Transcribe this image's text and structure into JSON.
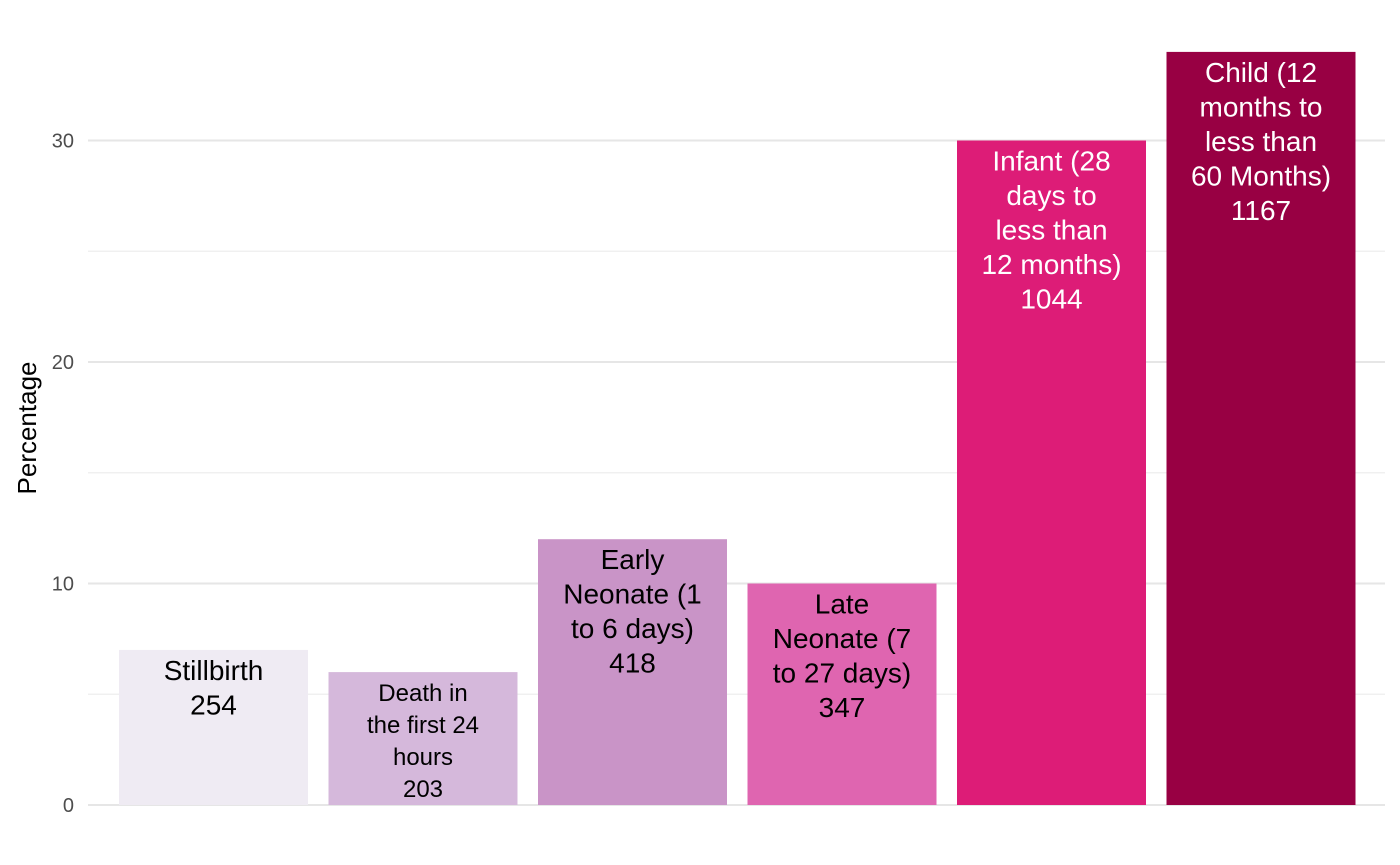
{
  "chart_data": {
    "type": "bar",
    "title": "",
    "xlabel": "",
    "ylabel": "Percentage",
    "ylim": [
      0,
      34.5
    ],
    "yticks": [
      0,
      10,
      20,
      30
    ],
    "grid": true,
    "legend": "none",
    "bars": [
      {
        "lines": [
          "Stillbirth",
          "254"
        ],
        "value": 7.0,
        "color": "#efebf3",
        "text_color": "#000000"
      },
      {
        "lines": [
          "Death in",
          "the first 24",
          "hours",
          "203"
        ],
        "value": 6.0,
        "color": "#d5b8db",
        "text_color": "#000000"
      },
      {
        "lines": [
          "Early",
          "Neonate (1",
          "to 6 days)",
          "418"
        ],
        "value": 12.0,
        "color": "#c994c7",
        "text_color": "#000000"
      },
      {
        "lines": [
          "Late",
          "Neonate (7",
          "to 27 days)",
          "347"
        ],
        "value": 10.0,
        "color": "#df65b0",
        "text_color": "#000000"
      },
      {
        "lines": [
          "Infant (28",
          "days to",
          "less than",
          "12 months)",
          "1044"
        ],
        "value": 30.0,
        "color": "#dd1c77",
        "text_color": "#ffffff"
      },
      {
        "lines": [
          "Child (12",
          "months to",
          "less than",
          "60 Months)",
          "1167"
        ],
        "value": 34.0,
        "color": "#980043",
        "text_color": "#ffffff"
      }
    ]
  }
}
